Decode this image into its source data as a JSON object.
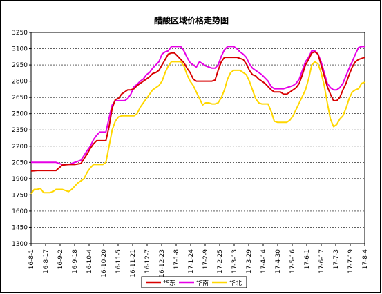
{
  "chart_data": {
    "type": "line",
    "title": "醋酸区域价格走势图",
    "xlabel": "",
    "ylabel": "",
    "ylim": [
      1300,
      3250
    ],
    "yticks": [
      1300,
      1450,
      1600,
      1750,
      1900,
      2050,
      2200,
      2350,
      2500,
      2650,
      2800,
      2950,
      3100,
      3250
    ],
    "categories": [
      "16-8-1",
      "16-8-17",
      "16-9-2",
      "16-9-18",
      "16-10-4",
      "16-10-20",
      "16-11-5",
      "16-11-21",
      "16-12-7",
      "16-12-23",
      "17-1-8",
      "17-1-24",
      "17-2-9",
      "17-2-25",
      "17-3-13",
      "17-3-29",
      "17-4-14",
      "17-4-30",
      "17-5-16",
      "17-6-1",
      "17-6-17",
      "17-7-3",
      "17-7-19",
      "17-8-4"
    ],
    "grid": true,
    "legend_position": "bottom",
    "series": [
      {
        "name": "华东",
        "color": "#d80000",
        "values": [
          [
            0,
            1970
          ],
          [
            2,
            1975
          ],
          [
            4,
            1975
          ],
          [
            6,
            1975
          ],
          [
            8,
            1975
          ],
          [
            10,
            2025
          ],
          [
            12,
            2030
          ],
          [
            14,
            2030
          ],
          [
            16,
            2040
          ],
          [
            18,
            2130
          ],
          [
            19,
            2180
          ],
          [
            20,
            2220
          ],
          [
            21,
            2250
          ],
          [
            22,
            2250
          ],
          [
            23,
            2250
          ],
          [
            24,
            2250
          ],
          [
            25,
            2380
          ],
          [
            26,
            2550
          ],
          [
            27,
            2630
          ],
          [
            28,
            2640
          ],
          [
            29,
            2680
          ],
          [
            30,
            2700
          ],
          [
            31,
            2720
          ],
          [
            32,
            2720
          ],
          [
            33,
            2730
          ],
          [
            34,
            2760
          ],
          [
            35,
            2780
          ],
          [
            36,
            2800
          ],
          [
            37,
            2820
          ],
          [
            38,
            2840
          ],
          [
            39,
            2870
          ],
          [
            40,
            2880
          ],
          [
            41,
            2900
          ],
          [
            42,
            2950
          ],
          [
            43,
            3000
          ],
          [
            44,
            3050
          ],
          [
            45,
            3060
          ],
          [
            46,
            3060
          ],
          [
            47,
            3030
          ],
          [
            48,
            3000
          ],
          [
            49,
            2970
          ],
          [
            50,
            2920
          ],
          [
            51,
            2880
          ],
          [
            52,
            2820
          ],
          [
            53,
            2800
          ],
          [
            54,
            2800
          ],
          [
            55,
            2800
          ],
          [
            56,
            2800
          ],
          [
            57,
            2800
          ],
          [
            58,
            2800
          ],
          [
            59,
            2810
          ],
          [
            60,
            2900
          ],
          [
            61,
            2980
          ],
          [
            62,
            3020
          ],
          [
            63,
            3020
          ],
          [
            64,
            3020
          ],
          [
            65,
            3020
          ],
          [
            66,
            3020
          ],
          [
            67,
            3010
          ],
          [
            68,
            3000
          ],
          [
            69,
            2960
          ],
          [
            70,
            2900
          ],
          [
            71,
            2860
          ],
          [
            72,
            2850
          ],
          [
            73,
            2820
          ],
          [
            74,
            2800
          ],
          [
            75,
            2780
          ],
          [
            76,
            2750
          ],
          [
            77,
            2720
          ],
          [
            78,
            2700
          ],
          [
            79,
            2700
          ],
          [
            80,
            2700
          ],
          [
            81,
            2680
          ],
          [
            82,
            2680
          ],
          [
            83,
            2700
          ],
          [
            84,
            2720
          ],
          [
            85,
            2740
          ],
          [
            86,
            2780
          ],
          [
            87,
            2860
          ],
          [
            88,
            2950
          ],
          [
            89,
            3000
          ],
          [
            90,
            3060
          ],
          [
            91,
            3070
          ],
          [
            92,
            3050
          ],
          [
            93,
            2950
          ],
          [
            94,
            2850
          ],
          [
            95,
            2750
          ],
          [
            96,
            2680
          ],
          [
            97,
            2620
          ],
          [
            98,
            2620
          ],
          [
            99,
            2650
          ],
          [
            100,
            2720
          ],
          [
            101,
            2780
          ],
          [
            102,
            2860
          ],
          [
            103,
            2930
          ],
          [
            104,
            2980
          ],
          [
            105,
            3000
          ],
          [
            106,
            3010
          ],
          [
            107,
            3020
          ]
        ]
      },
      {
        "name": "华南",
        "color": "#e600e6",
        "values": [
          [
            0,
            2050
          ],
          [
            2,
            2050
          ],
          [
            4,
            2050
          ],
          [
            6,
            2050
          ],
          [
            8,
            2050
          ],
          [
            10,
            2030
          ],
          [
            12,
            2030
          ],
          [
            14,
            2050
          ],
          [
            16,
            2070
          ],
          [
            18,
            2160
          ],
          [
            19,
            2200
          ],
          [
            20,
            2260
          ],
          [
            21,
            2300
          ],
          [
            22,
            2330
          ],
          [
            23,
            2330
          ],
          [
            24,
            2330
          ],
          [
            25,
            2460
          ],
          [
            26,
            2580
          ],
          [
            27,
            2620
          ],
          [
            28,
            2620
          ],
          [
            29,
            2620
          ],
          [
            30,
            2620
          ],
          [
            31,
            2640
          ],
          [
            32,
            2680
          ],
          [
            33,
            2750
          ],
          [
            34,
            2770
          ],
          [
            35,
            2800
          ],
          [
            36,
            2820
          ],
          [
            37,
            2860
          ],
          [
            38,
            2880
          ],
          [
            39,
            2920
          ],
          [
            40,
            2950
          ],
          [
            41,
            2980
          ],
          [
            42,
            3050
          ],
          [
            43,
            3070
          ],
          [
            44,
            3080
          ],
          [
            45,
            3120
          ],
          [
            46,
            3120
          ],
          [
            47,
            3120
          ],
          [
            48,
            3120
          ],
          [
            49,
            3080
          ],
          [
            50,
            3020
          ],
          [
            51,
            2970
          ],
          [
            52,
            2950
          ],
          [
            53,
            2930
          ],
          [
            54,
            2980
          ],
          [
            55,
            2960
          ],
          [
            56,
            2940
          ],
          [
            57,
            2930
          ],
          [
            58,
            2920
          ],
          [
            59,
            2920
          ],
          [
            60,
            2950
          ],
          [
            61,
            3030
          ],
          [
            62,
            3090
          ],
          [
            63,
            3120
          ],
          [
            64,
            3120
          ],
          [
            65,
            3120
          ],
          [
            66,
            3100
          ],
          [
            67,
            3070
          ],
          [
            68,
            3050
          ],
          [
            69,
            3020
          ],
          [
            70,
            2960
          ],
          [
            71,
            2920
          ],
          [
            72,
            2900
          ],
          [
            73,
            2880
          ],
          [
            74,
            2860
          ],
          [
            75,
            2830
          ],
          [
            76,
            2800
          ],
          [
            77,
            2750
          ],
          [
            78,
            2730
          ],
          [
            79,
            2730
          ],
          [
            80,
            2730
          ],
          [
            81,
            2730
          ],
          [
            82,
            2740
          ],
          [
            83,
            2750
          ],
          [
            84,
            2760
          ],
          [
            85,
            2780
          ],
          [
            86,
            2820
          ],
          [
            87,
            2900
          ],
          [
            88,
            2980
          ],
          [
            89,
            3020
          ],
          [
            90,
            3080
          ],
          [
            91,
            3080
          ],
          [
            92,
            3050
          ],
          [
            93,
            2980
          ],
          [
            94,
            2880
          ],
          [
            95,
            2780
          ],
          [
            96,
            2740
          ],
          [
            97,
            2720
          ],
          [
            98,
            2720
          ],
          [
            99,
            2740
          ],
          [
            100,
            2780
          ],
          [
            101,
            2850
          ],
          [
            102,
            2920
          ],
          [
            103,
            2980
          ],
          [
            104,
            3050
          ],
          [
            105,
            3110
          ],
          [
            106,
            3120
          ],
          [
            107,
            3120
          ]
        ]
      },
      {
        "name": "华北",
        "color": "#ffd700",
        "values": [
          [
            0,
            1760
          ],
          [
            1,
            1800
          ],
          [
            2,
            1800
          ],
          [
            3,
            1810
          ],
          [
            4,
            1770
          ],
          [
            5,
            1770
          ],
          [
            6,
            1770
          ],
          [
            7,
            1780
          ],
          [
            8,
            1800
          ],
          [
            9,
            1800
          ],
          [
            10,
            1800
          ],
          [
            11,
            1790
          ],
          [
            12,
            1780
          ],
          [
            13,
            1800
          ],
          [
            14,
            1830
          ],
          [
            15,
            1860
          ],
          [
            16,
            1880
          ],
          [
            17,
            1900
          ],
          [
            18,
            1960
          ],
          [
            19,
            2000
          ],
          [
            20,
            2030
          ],
          [
            21,
            2030
          ],
          [
            22,
            2030
          ],
          [
            23,
            2030
          ],
          [
            24,
            2050
          ],
          [
            25,
            2200
          ],
          [
            26,
            2350
          ],
          [
            27,
            2430
          ],
          [
            28,
            2470
          ],
          [
            29,
            2480
          ],
          [
            30,
            2480
          ],
          [
            31,
            2480
          ],
          [
            32,
            2480
          ],
          [
            33,
            2480
          ],
          [
            34,
            2500
          ],
          [
            35,
            2560
          ],
          [
            36,
            2600
          ],
          [
            37,
            2640
          ],
          [
            38,
            2680
          ],
          [
            39,
            2720
          ],
          [
            40,
            2740
          ],
          [
            41,
            2760
          ],
          [
            42,
            2800
          ],
          [
            43,
            2880
          ],
          [
            44,
            2940
          ],
          [
            45,
            2980
          ],
          [
            46,
            2980
          ],
          [
            47,
            2980
          ],
          [
            48,
            2980
          ],
          [
            49,
            2940
          ],
          [
            50,
            2860
          ],
          [
            51,
            2800
          ],
          [
            52,
            2760
          ],
          [
            53,
            2700
          ],
          [
            54,
            2640
          ],
          [
            55,
            2580
          ],
          [
            56,
            2600
          ],
          [
            57,
            2600
          ],
          [
            58,
            2590
          ],
          [
            59,
            2590
          ],
          [
            60,
            2600
          ],
          [
            61,
            2650
          ],
          [
            62,
            2720
          ],
          [
            63,
            2820
          ],
          [
            64,
            2880
          ],
          [
            65,
            2900
          ],
          [
            66,
            2900
          ],
          [
            67,
            2900
          ],
          [
            68,
            2880
          ],
          [
            69,
            2860
          ],
          [
            70,
            2800
          ],
          [
            71,
            2720
          ],
          [
            72,
            2640
          ],
          [
            73,
            2600
          ],
          [
            74,
            2590
          ],
          [
            75,
            2590
          ],
          [
            76,
            2590
          ],
          [
            77,
            2520
          ],
          [
            78,
            2430
          ],
          [
            79,
            2420
          ],
          [
            80,
            2420
          ],
          [
            81,
            2420
          ],
          [
            82,
            2420
          ],
          [
            83,
            2440
          ],
          [
            84,
            2480
          ],
          [
            85,
            2540
          ],
          [
            86,
            2600
          ],
          [
            87,
            2660
          ],
          [
            88,
            2720
          ],
          [
            89,
            2820
          ],
          [
            90,
            2950
          ],
          [
            91,
            2980
          ],
          [
            92,
            2960
          ],
          [
            93,
            2880
          ],
          [
            94,
            2760
          ],
          [
            95,
            2600
          ],
          [
            96,
            2450
          ],
          [
            97,
            2380
          ],
          [
            98,
            2400
          ],
          [
            99,
            2450
          ],
          [
            100,
            2480
          ],
          [
            101,
            2550
          ],
          [
            102,
            2640
          ],
          [
            103,
            2700
          ],
          [
            104,
            2720
          ],
          [
            105,
            2730
          ],
          [
            106,
            2780
          ],
          [
            107,
            2790
          ]
        ]
      }
    ]
  }
}
